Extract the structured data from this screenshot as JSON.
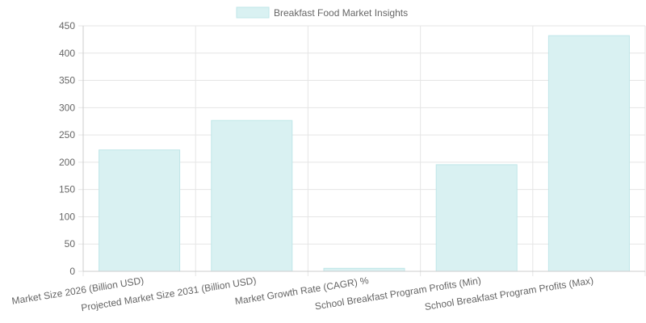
{
  "chart_data": {
    "type": "bar",
    "legend": {
      "label": "Breakfast Food Market Insights",
      "position": "top-center"
    },
    "categories": [
      "Market Size 2026 (Billion USD)",
      "Projected Market Size 2031 (Billion USD)",
      "Market Growth Rate (CAGR) %",
      "School Breakfast Program Profits (Min)",
      "School Breakfast Program Profits (Max)"
    ],
    "series": [
      {
        "name": "Breakfast Food Market Insights",
        "values": [
          222.5,
          276.5,
          5.5,
          195.5,
          432
        ]
      }
    ],
    "ylim": [
      0,
      450
    ],
    "y_ticks": [
      0,
      50,
      100,
      150,
      200,
      250,
      300,
      350,
      400,
      450
    ],
    "grid": true,
    "colors": {
      "bar_fill": "#d9f1f2",
      "bar_stroke": "#bfe6e8",
      "grid": "#e5e5e5",
      "axis": "#cccccc",
      "text": "#666666"
    }
  }
}
